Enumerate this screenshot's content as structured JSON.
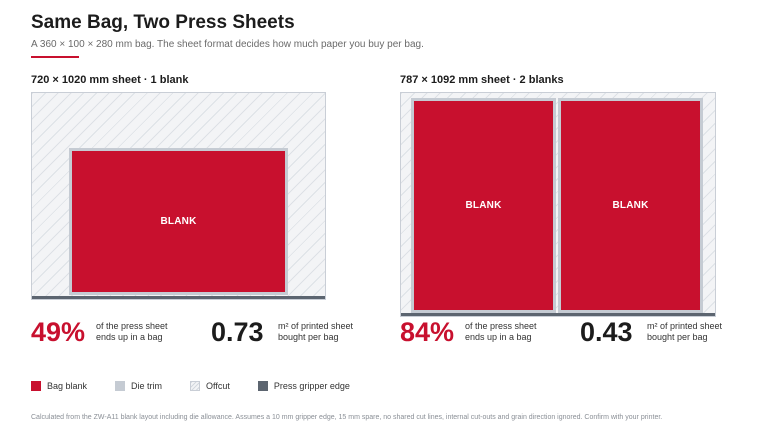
{
  "title": "Same Bag, Two Press Sheets",
  "subtitle": "A 360 × 100 × 280 mm bag. The sheet format decides how much paper you buy per bag.",
  "panels": [
    {
      "heading": "720 × 1020 mm sheet · 1 blank",
      "blank_labels": [
        "BLANK"
      ],
      "percent": "49%",
      "percent_desc": "of the press sheet ends up in a bag",
      "area": "0.73",
      "area_desc": "m² of printed sheet bought per bag"
    },
    {
      "heading": "787 × 1092 mm sheet · 2 blanks",
      "blank_labels": [
        "BLANK",
        "BLANK"
      ],
      "percent": "84%",
      "percent_desc": "of the press sheet ends up in a bag",
      "area": "0.43",
      "area_desc": "m² of printed sheet bought per bag"
    }
  ],
  "legend": {
    "items": [
      {
        "label": "Bag blank",
        "color": "#c8102e"
      },
      {
        "label": "Die trim",
        "color": "#c5cbd3"
      },
      {
        "label": "Offcut",
        "color": "#f3f4f6"
      },
      {
        "label": "Press gripper edge",
        "color": "#5c6570"
      }
    ]
  },
  "footnote": "Calculated from the ZW-A11 blank layout including die allowance. Assumes a 10 mm gripper edge, 15 mm spare, no shared cut lines, internal cut-outs and grain direction ignored. Confirm with your printer."
}
